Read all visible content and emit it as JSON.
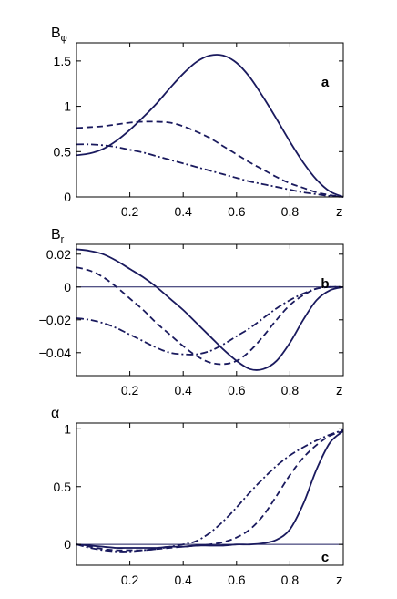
{
  "chart_data": [
    {
      "type": "line",
      "panel_label": "a",
      "ylabel": "B_φ",
      "xlabel": "z",
      "xlim": [
        0,
        1
      ],
      "ylim": [
        0,
        1.7
      ],
      "xticks": [
        0.2,
        0.4,
        0.6,
        0.8
      ],
      "yticks": [
        0,
        0.5,
        1,
        1.5
      ],
      "xtick_labels": [
        "0.2",
        "0.4",
        "0.6",
        "0.8"
      ],
      "ytick_labels": [
        "0",
        "0.5",
        "1",
        "1.5"
      ],
      "zero_line": false,
      "color": "#1a1a5e",
      "series": [
        {
          "style": "solid",
          "x": [
            0,
            0.05,
            0.1,
            0.15,
            0.2,
            0.25,
            0.3,
            0.35,
            0.4,
            0.45,
            0.5,
            0.55,
            0.6,
            0.65,
            0.7,
            0.75,
            0.8,
            0.85,
            0.9,
            0.95,
            1.0
          ],
          "y": [
            0.46,
            0.48,
            0.53,
            0.62,
            0.74,
            0.88,
            1.03,
            1.2,
            1.36,
            1.49,
            1.56,
            1.56,
            1.48,
            1.32,
            1.1,
            0.86,
            0.61,
            0.38,
            0.19,
            0.06,
            0.0
          ]
        },
        {
          "style": "dashed",
          "x": [
            0,
            0.05,
            0.1,
            0.15,
            0.2,
            0.25,
            0.3,
            0.35,
            0.4,
            0.45,
            0.5,
            0.55,
            0.6,
            0.65,
            0.7,
            0.75,
            0.8,
            0.85,
            0.9,
            0.95,
            1.0
          ],
          "y": [
            0.76,
            0.77,
            0.78,
            0.8,
            0.82,
            0.83,
            0.83,
            0.82,
            0.78,
            0.72,
            0.65,
            0.56,
            0.47,
            0.38,
            0.3,
            0.22,
            0.15,
            0.1,
            0.05,
            0.02,
            0.0
          ]
        },
        {
          "style": "dashdot",
          "x": [
            0,
            0.05,
            0.1,
            0.15,
            0.2,
            0.25,
            0.3,
            0.35,
            0.4,
            0.45,
            0.5,
            0.55,
            0.6,
            0.65,
            0.7,
            0.75,
            0.8,
            0.85,
            0.9,
            0.95,
            1.0
          ],
          "y": [
            0.58,
            0.58,
            0.57,
            0.55,
            0.52,
            0.49,
            0.45,
            0.41,
            0.37,
            0.33,
            0.29,
            0.25,
            0.21,
            0.17,
            0.14,
            0.11,
            0.08,
            0.05,
            0.03,
            0.01,
            0.0
          ]
        }
      ]
    },
    {
      "type": "line",
      "panel_label": "b",
      "ylabel": "B_r",
      "xlabel": "z",
      "xlim": [
        0,
        1
      ],
      "ylim": [
        -0.054,
        0.026
      ],
      "xticks": [
        0.2,
        0.4,
        0.6,
        0.8
      ],
      "yticks": [
        -0.04,
        -0.02,
        0,
        0.02
      ],
      "xtick_labels": [
        "0.2",
        "0.4",
        "0.6",
        "0.8"
      ],
      "ytick_labels": [
        "−0.04",
        "−0.02",
        "0",
        "0.02"
      ],
      "zero_line": true,
      "color": "#1a1a5e",
      "series": [
        {
          "style": "solid",
          "x": [
            0,
            0.05,
            0.1,
            0.15,
            0.2,
            0.25,
            0.3,
            0.35,
            0.4,
            0.45,
            0.5,
            0.55,
            0.6,
            0.65,
            0.7,
            0.75,
            0.8,
            0.85,
            0.9,
            0.95,
            1.0
          ],
          "y": [
            0.023,
            0.022,
            0.02,
            0.016,
            0.011,
            0.006,
            0.0,
            -0.007,
            -0.014,
            -0.022,
            -0.03,
            -0.038,
            -0.045,
            -0.05,
            -0.05,
            -0.045,
            -0.034,
            -0.02,
            -0.008,
            -0.002,
            0.0
          ]
        },
        {
          "style": "dashed",
          "x": [
            0,
            0.05,
            0.1,
            0.15,
            0.2,
            0.25,
            0.3,
            0.35,
            0.4,
            0.45,
            0.5,
            0.55,
            0.6,
            0.65,
            0.7,
            0.75,
            0.8,
            0.85,
            0.9,
            0.95,
            1.0
          ],
          "y": [
            0.012,
            0.01,
            0.006,
            0.0,
            -0.007,
            -0.014,
            -0.022,
            -0.029,
            -0.036,
            -0.042,
            -0.046,
            -0.047,
            -0.045,
            -0.039,
            -0.03,
            -0.02,
            -0.011,
            -0.005,
            -0.001,
            0.0,
            0.0
          ]
        },
        {
          "style": "dashdot",
          "x": [
            0,
            0.05,
            0.1,
            0.15,
            0.2,
            0.25,
            0.3,
            0.35,
            0.4,
            0.45,
            0.5,
            0.55,
            0.6,
            0.65,
            0.7,
            0.75,
            0.8,
            0.85,
            0.9,
            0.95,
            1.0
          ],
          "y": [
            -0.019,
            -0.02,
            -0.022,
            -0.025,
            -0.029,
            -0.033,
            -0.037,
            -0.04,
            -0.041,
            -0.041,
            -0.039,
            -0.035,
            -0.03,
            -0.025,
            -0.019,
            -0.013,
            -0.008,
            -0.004,
            -0.001,
            0.0,
            0.0
          ]
        }
      ]
    },
    {
      "type": "line",
      "panel_label": "c",
      "ylabel": "α",
      "xlabel": "z",
      "xlim": [
        0,
        1
      ],
      "ylim": [
        -0.18,
        1.05
      ],
      "xticks": [
        0.2,
        0.4,
        0.6,
        0.8
      ],
      "yticks": [
        0,
        0.5,
        1
      ],
      "xtick_labels": [
        "0.2",
        "0.4",
        "0.6",
        "0.8"
      ],
      "ytick_labels": [
        "0",
        "0.5",
        "1"
      ],
      "zero_line": true,
      "color": "#1a1a5e",
      "series": [
        {
          "style": "solid",
          "x": [
            0,
            0.05,
            0.1,
            0.15,
            0.2,
            0.25,
            0.3,
            0.35,
            0.4,
            0.45,
            0.5,
            0.55,
            0.6,
            0.65,
            0.7,
            0.75,
            0.8,
            0.85,
            0.9,
            0.95,
            1.0
          ],
          "y": [
            0.0,
            -0.01,
            -0.02,
            -0.03,
            -0.03,
            -0.03,
            -0.03,
            -0.02,
            -0.02,
            -0.01,
            -0.01,
            -0.01,
            0.0,
            0.0,
            0.01,
            0.04,
            0.13,
            0.35,
            0.65,
            0.88,
            0.98
          ]
        },
        {
          "style": "dashed",
          "x": [
            0,
            0.05,
            0.1,
            0.15,
            0.2,
            0.25,
            0.3,
            0.35,
            0.4,
            0.45,
            0.5,
            0.55,
            0.6,
            0.65,
            0.7,
            0.75,
            0.8,
            0.85,
            0.9,
            0.95,
            1.0
          ],
          "y": [
            0.0,
            -0.02,
            -0.04,
            -0.05,
            -0.05,
            -0.05,
            -0.04,
            -0.03,
            -0.02,
            -0.01,
            0.0,
            0.02,
            0.06,
            0.13,
            0.25,
            0.42,
            0.6,
            0.75,
            0.86,
            0.94,
            0.98
          ]
        },
        {
          "style": "dashdot",
          "x": [
            0,
            0.05,
            0.1,
            0.15,
            0.2,
            0.25,
            0.3,
            0.35,
            0.4,
            0.45,
            0.5,
            0.55,
            0.6,
            0.65,
            0.7,
            0.75,
            0.8,
            0.85,
            0.9,
            0.95,
            1.0
          ],
          "y": [
            0.0,
            -0.03,
            -0.05,
            -0.06,
            -0.06,
            -0.05,
            -0.04,
            -0.02,
            0.0,
            0.03,
            0.1,
            0.2,
            0.32,
            0.45,
            0.57,
            0.68,
            0.77,
            0.84,
            0.9,
            0.95,
            0.99
          ]
        }
      ]
    }
  ]
}
